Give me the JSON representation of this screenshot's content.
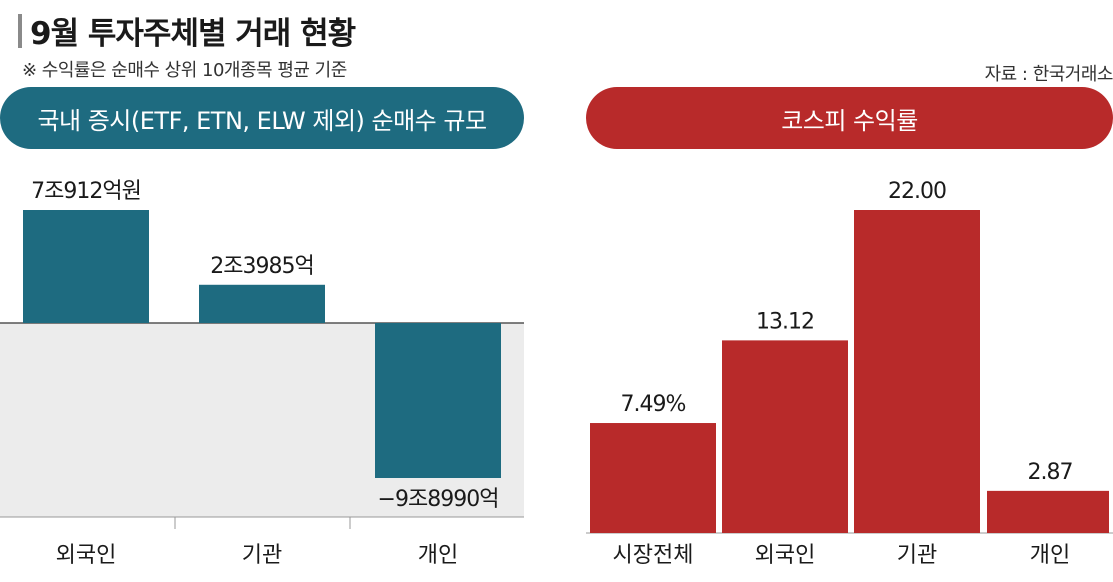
{
  "header": {
    "title": "9월 투자주체별 거래 현황",
    "note": "※ 수익률은 순매수 상위 10개종목 평균 기준",
    "source": "자료 : 한국거래소"
  },
  "colors": {
    "left_accent": "#1e6b80",
    "right_accent": "#b82a2a",
    "negative_zone": "#ececec"
  },
  "chart_data": [
    {
      "type": "bar",
      "title": "국내 증시(ETF, ETN, ELW 제외) 순매수 규모",
      "categories": [
        "외국인",
        "기관",
        "개인"
      ],
      "values": [
        70912,
        23985,
        -98990
      ],
      "value_unit": "억원",
      "labels": [
        "7조912억원",
        "2조3985억",
        "−9조8990억"
      ],
      "xlabel": "",
      "ylabel": "",
      "grid": false
    },
    {
      "type": "bar",
      "title": "코스피 수익률",
      "categories": [
        "시장전체",
        "외국인",
        "기관",
        "개인"
      ],
      "values": [
        7.49,
        13.12,
        22.0,
        2.87
      ],
      "value_unit": "%",
      "labels": [
        "7.49%",
        "13.12",
        "22.00",
        "2.87"
      ],
      "xlabel": "",
      "ylabel": "",
      "grid": false
    }
  ]
}
